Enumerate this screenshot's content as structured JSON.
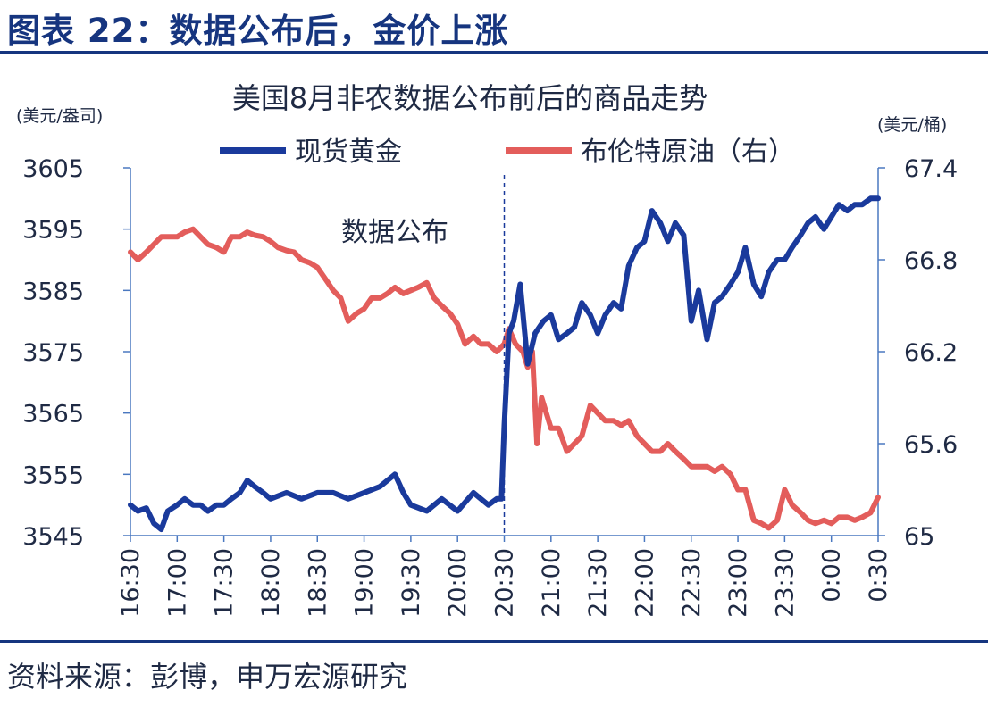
{
  "figure": {
    "heading": "图表 22：数据公布后，金价上涨",
    "source": "资料来源：彭博，申万宏源研究"
  },
  "colors": {
    "gold": "#1a3a9c",
    "brent": "#e35d5b",
    "axis": "#4a78c0",
    "heading": "#16357f"
  },
  "chart_data": {
    "type": "line",
    "title": "美国8月非农数据公布前后的商品走势",
    "x_tick_labels": [
      "16:30",
      "17:00",
      "17:30",
      "18:00",
      "18:30",
      "19:00",
      "19:30",
      "20:00",
      "20:30",
      "21:00",
      "21:30",
      "22:00",
      "22:30",
      "23:00",
      "23:30",
      "0:00",
      "0:30"
    ],
    "x_range_hours": [
      16.5,
      24.5
    ],
    "left_axis": {
      "unit": "(美元/盎司)",
      "range": [
        3545,
        3605
      ],
      "ticks": [
        "3605",
        "3595",
        "3585",
        "3575",
        "3565",
        "3555",
        "3545"
      ]
    },
    "right_axis": {
      "unit": "(美元/桶)",
      "range": [
        65,
        67.4
      ],
      "ticks": [
        "67.4",
        "66.8",
        "66.2",
        "65.6",
        "65"
      ]
    },
    "legend": {
      "placement": "top",
      "items": [
        "现货黄金",
        "布伦特原油（右）"
      ]
    },
    "annotation": {
      "label": "数据公布",
      "x": 20.5
    },
    "series": [
      {
        "name": "现货黄金",
        "axis": "left",
        "points": [
          [
            16.5,
            3550
          ],
          [
            16.58,
            3549
          ],
          [
            16.67,
            3549.5
          ],
          [
            16.75,
            3547
          ],
          [
            16.83,
            3546
          ],
          [
            16.9,
            3549
          ],
          [
            17.0,
            3550
          ],
          [
            17.08,
            3551
          ],
          [
            17.17,
            3550
          ],
          [
            17.25,
            3550
          ],
          [
            17.33,
            3549
          ],
          [
            17.42,
            3550
          ],
          [
            17.5,
            3550
          ],
          [
            17.58,
            3551
          ],
          [
            17.67,
            3552
          ],
          [
            17.75,
            3554
          ],
          [
            17.83,
            3553
          ],
          [
            17.92,
            3552
          ],
          [
            18.0,
            3551
          ],
          [
            18.17,
            3552
          ],
          [
            18.33,
            3551
          ],
          [
            18.5,
            3552
          ],
          [
            18.67,
            3552
          ],
          [
            18.83,
            3551
          ],
          [
            19.0,
            3552
          ],
          [
            19.17,
            3553
          ],
          [
            19.33,
            3555
          ],
          [
            19.42,
            3552
          ],
          [
            19.5,
            3550
          ],
          [
            19.67,
            3549
          ],
          [
            19.83,
            3551
          ],
          [
            20.0,
            3549
          ],
          [
            20.17,
            3552
          ],
          [
            20.25,
            3551
          ],
          [
            20.33,
            3550
          ],
          [
            20.42,
            3551
          ],
          [
            20.47,
            3551
          ],
          [
            20.5,
            3563
          ],
          [
            20.55,
            3578
          ],
          [
            20.6,
            3580
          ],
          [
            20.67,
            3586
          ],
          [
            20.75,
            3573
          ],
          [
            20.83,
            3578
          ],
          [
            20.92,
            3580
          ],
          [
            21.0,
            3581
          ],
          [
            21.08,
            3577
          ],
          [
            21.17,
            3578
          ],
          [
            21.25,
            3579
          ],
          [
            21.33,
            3583
          ],
          [
            21.42,
            3581
          ],
          [
            21.5,
            3578
          ],
          [
            21.58,
            3581
          ],
          [
            21.67,
            3583
          ],
          [
            21.75,
            3582
          ],
          [
            21.83,
            3589
          ],
          [
            21.92,
            3592
          ],
          [
            22.0,
            3593
          ],
          [
            22.08,
            3598
          ],
          [
            22.17,
            3596
          ],
          [
            22.25,
            3593
          ],
          [
            22.33,
            3596
          ],
          [
            22.42,
            3594
          ],
          [
            22.5,
            3580
          ],
          [
            22.58,
            3585
          ],
          [
            22.67,
            3577
          ],
          [
            22.75,
            3583
          ],
          [
            22.83,
            3584
          ],
          [
            22.92,
            3586
          ],
          [
            23.0,
            3588
          ],
          [
            23.08,
            3592
          ],
          [
            23.17,
            3586
          ],
          [
            23.25,
            3584
          ],
          [
            23.33,
            3588
          ],
          [
            23.42,
            3590
          ],
          [
            23.5,
            3590
          ],
          [
            23.58,
            3592
          ],
          [
            23.67,
            3594
          ],
          [
            23.75,
            3596
          ],
          [
            23.83,
            3597
          ],
          [
            23.92,
            3595
          ],
          [
            24.0,
            3597
          ],
          [
            24.08,
            3599
          ],
          [
            24.17,
            3598
          ],
          [
            24.25,
            3599
          ],
          [
            24.33,
            3599
          ],
          [
            24.42,
            3600
          ],
          [
            24.5,
            3600
          ]
        ]
      },
      {
        "name": "布伦特原油（右）",
        "axis": "right",
        "points": [
          [
            16.5,
            66.85
          ],
          [
            16.58,
            66.8
          ],
          [
            16.67,
            66.85
          ],
          [
            16.75,
            66.9
          ],
          [
            16.83,
            66.95
          ],
          [
            16.92,
            66.95
          ],
          [
            17.0,
            66.95
          ],
          [
            17.08,
            66.98
          ],
          [
            17.17,
            67.0
          ],
          [
            17.25,
            66.95
          ],
          [
            17.33,
            66.9
          ],
          [
            17.42,
            66.88
          ],
          [
            17.5,
            66.85
          ],
          [
            17.58,
            66.95
          ],
          [
            17.67,
            66.95
          ],
          [
            17.75,
            66.98
          ],
          [
            17.83,
            66.96
          ],
          [
            17.92,
            66.95
          ],
          [
            18.0,
            66.92
          ],
          [
            18.08,
            66.88
          ],
          [
            18.17,
            66.86
          ],
          [
            18.25,
            66.85
          ],
          [
            18.33,
            66.8
          ],
          [
            18.42,
            66.78
          ],
          [
            18.5,
            66.75
          ],
          [
            18.58,
            66.68
          ],
          [
            18.67,
            66.6
          ],
          [
            18.75,
            66.55
          ],
          [
            18.83,
            66.4
          ],
          [
            18.92,
            66.45
          ],
          [
            19.0,
            66.48
          ],
          [
            19.08,
            66.55
          ],
          [
            19.17,
            66.55
          ],
          [
            19.25,
            66.58
          ],
          [
            19.33,
            66.62
          ],
          [
            19.42,
            66.58
          ],
          [
            19.5,
            66.6
          ],
          [
            19.58,
            66.62
          ],
          [
            19.67,
            66.65
          ],
          [
            19.75,
            66.55
          ],
          [
            19.83,
            66.5
          ],
          [
            19.92,
            66.45
          ],
          [
            20.0,
            66.38
          ],
          [
            20.08,
            66.25
          ],
          [
            20.17,
            66.3
          ],
          [
            20.25,
            66.25
          ],
          [
            20.33,
            66.25
          ],
          [
            20.42,
            66.2
          ],
          [
            20.5,
            66.25
          ],
          [
            20.55,
            66.35
          ],
          [
            20.62,
            66.25
          ],
          [
            20.7,
            66.2
          ],
          [
            20.75,
            66.1
          ],
          [
            20.8,
            66.2
          ],
          [
            20.85,
            65.6
          ],
          [
            20.9,
            65.9
          ],
          [
            21.0,
            65.7
          ],
          [
            21.08,
            65.7
          ],
          [
            21.17,
            65.55
          ],
          [
            21.25,
            65.6
          ],
          [
            21.33,
            65.65
          ],
          [
            21.42,
            65.85
          ],
          [
            21.5,
            65.8
          ],
          [
            21.58,
            65.75
          ],
          [
            21.67,
            65.75
          ],
          [
            21.75,
            65.72
          ],
          [
            21.83,
            65.75
          ],
          [
            21.92,
            65.65
          ],
          [
            22.0,
            65.6
          ],
          [
            22.08,
            65.55
          ],
          [
            22.17,
            65.55
          ],
          [
            22.25,
            65.6
          ],
          [
            22.33,
            65.55
          ],
          [
            22.42,
            65.5
          ],
          [
            22.5,
            65.45
          ],
          [
            22.58,
            65.45
          ],
          [
            22.67,
            65.45
          ],
          [
            22.75,
            65.42
          ],
          [
            22.83,
            65.45
          ],
          [
            22.92,
            65.4
          ],
          [
            23.0,
            65.3
          ],
          [
            23.08,
            65.3
          ],
          [
            23.17,
            65.1
          ],
          [
            23.25,
            65.08
          ],
          [
            23.33,
            65.05
          ],
          [
            23.42,
            65.1
          ],
          [
            23.5,
            65.3
          ],
          [
            23.58,
            65.2
          ],
          [
            23.67,
            65.15
          ],
          [
            23.75,
            65.1
          ],
          [
            23.83,
            65.08
          ],
          [
            23.92,
            65.1
          ],
          [
            24.0,
            65.08
          ],
          [
            24.08,
            65.12
          ],
          [
            24.17,
            65.12
          ],
          [
            24.25,
            65.1
          ],
          [
            24.33,
            65.12
          ],
          [
            24.42,
            65.15
          ],
          [
            24.5,
            65.25
          ]
        ]
      }
    ]
  }
}
